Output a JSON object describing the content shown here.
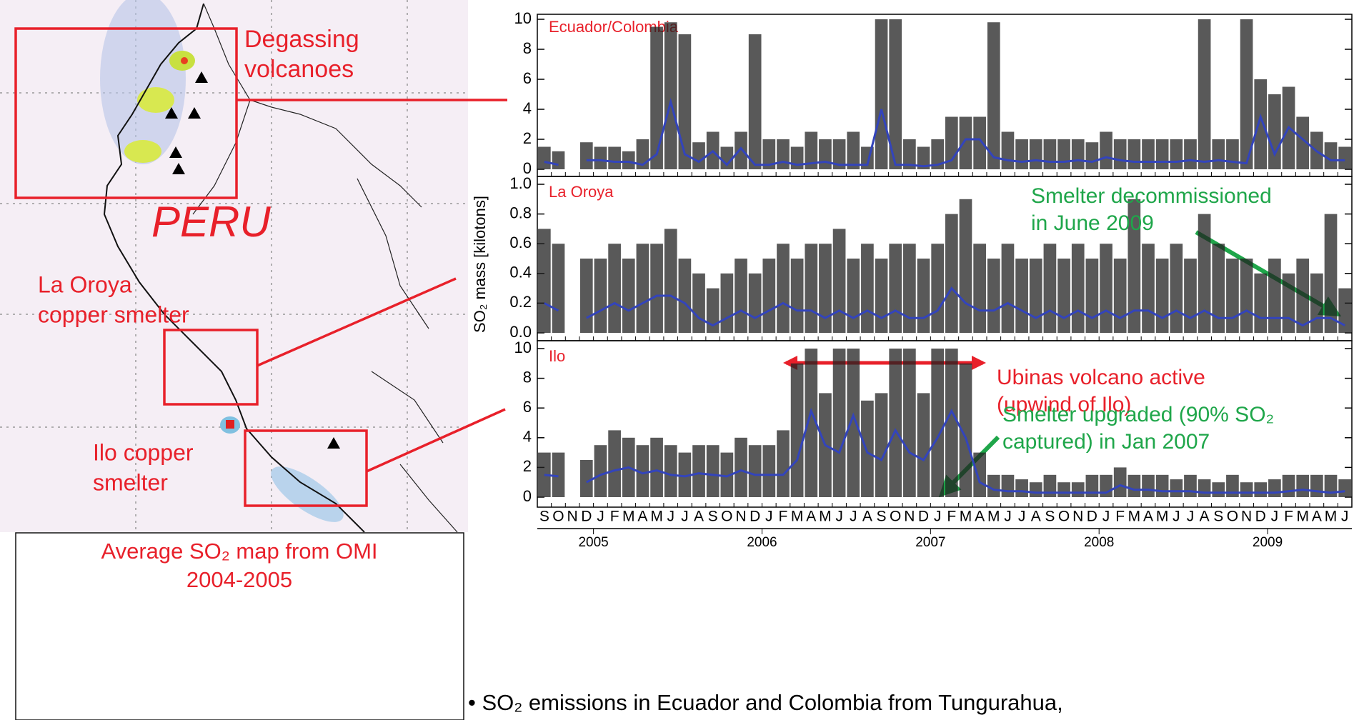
{
  "map": {
    "labels": {
      "degassing": [
        "Degassing",
        "volcanoes"
      ],
      "country": "PERU",
      "oroya": [
        "La Oroya",
        "copper smelter"
      ],
      "ilo": [
        "Ilo copper",
        "smelter"
      ]
    },
    "caption": [
      "Average SO₂ map from OMI",
      "2004-2005"
    ]
  },
  "ylabel": "SO₂ mass [kilotons]",
  "bullet": "• SO₂ emissions in Ecuador and Colombia from Tungurahua,",
  "chart_data": [
    {
      "type": "line",
      "title": "Ecuador/Colombia",
      "ylim": [
        0,
        10
      ],
      "yticks": [
        0,
        2,
        4,
        6,
        8,
        10
      ],
      "series": [
        {
          "style": "spikes",
          "color": "#222222",
          "values": [
            1.5,
            1.2,
            null,
            1.8,
            1.5,
            1.5,
            1.2,
            2.0,
            9.5,
            9.8,
            9.0,
            1.8,
            2.5,
            1.5,
            2.5,
            9.0,
            2.0,
            2.0,
            1.5,
            2.5,
            2.0,
            2.0,
            2.5,
            1.5,
            10,
            10,
            2.0,
            1.5,
            2.0,
            3.5,
            3.5,
            3.5,
            9.8,
            2.5,
            2.0,
            2.0,
            2.0,
            2.0,
            2.0,
            1.8,
            2.5,
            2.0,
            2.0,
            2.0,
            2.0,
            2.0,
            2.0,
            10,
            2.0,
            2.0,
            10,
            6.0,
            5.0,
            5.5,
            3.5,
            2.5,
            1.8,
            1.5
          ]
        },
        {
          "style": "line",
          "color": "#3344bb",
          "values": [
            0.5,
            0.3,
            null,
            0.6,
            0.6,
            0.5,
            0.5,
            0.3,
            1.0,
            4.5,
            1.0,
            0.5,
            1.2,
            0.3,
            1.4,
            0.3,
            0.3,
            0.5,
            0.3,
            0.4,
            0.5,
            0.3,
            0.3,
            0.3,
            4.0,
            0.3,
            0.3,
            0.2,
            0.3,
            0.6,
            2.0,
            2.0,
            0.8,
            0.6,
            0.5,
            0.6,
            0.5,
            0.5,
            0.6,
            0.5,
            0.8,
            0.6,
            0.5,
            0.5,
            0.5,
            0.5,
            0.6,
            0.5,
            0.6,
            0.5,
            0.4,
            3.5,
            1.0,
            2.8,
            2.0,
            1.2,
            0.6,
            0.6
          ]
        }
      ]
    },
    {
      "type": "line",
      "title": "La Oroya",
      "ylim": [
        0,
        1
      ],
      "yticks": [
        {
          "value": 0,
          "label": "0.0"
        },
        0.2,
        0.4,
        0.6,
        0.8,
        {
          "value": 1,
          "label": "1.0"
        }
      ],
      "annotations": {
        "decommissioned": [
          "Smelter decommissioned",
          "in June 2009"
        ]
      },
      "series": [
        {
          "style": "spikes",
          "color": "#222222",
          "values": [
            0.7,
            0.6,
            null,
            0.5,
            0.5,
            0.6,
            0.5,
            0.6,
            0.6,
            0.7,
            0.5,
            0.4,
            0.3,
            0.4,
            0.5,
            0.4,
            0.5,
            0.6,
            0.5,
            0.6,
            0.6,
            0.7,
            0.5,
            0.6,
            0.5,
            0.6,
            0.6,
            0.5,
            0.6,
            0.8,
            0.9,
            0.6,
            0.5,
            0.6,
            0.5,
            0.5,
            0.6,
            0.5,
            0.6,
            0.5,
            0.6,
            0.5,
            0.9,
            0.6,
            0.5,
            0.6,
            0.5,
            0.8,
            0.6,
            0.5,
            0.5,
            0.4,
            0.5,
            0.4,
            0.5,
            0.4,
            0.8,
            0.3
          ]
        },
        {
          "style": "line",
          "color": "#3344bb",
          "values": [
            0.2,
            0.15,
            null,
            0.1,
            0.15,
            0.2,
            0.15,
            0.2,
            0.25,
            0.25,
            0.2,
            0.1,
            0.05,
            0.1,
            0.15,
            0.1,
            0.15,
            0.2,
            0.15,
            0.15,
            0.1,
            0.15,
            0.1,
            0.15,
            0.1,
            0.15,
            0.1,
            0.1,
            0.15,
            0.3,
            0.2,
            0.15,
            0.15,
            0.2,
            0.15,
            0.1,
            0.15,
            0.1,
            0.15,
            0.1,
            0.15,
            0.1,
            0.15,
            0.15,
            0.1,
            0.15,
            0.1,
            0.15,
            0.1,
            0.1,
            0.15,
            0.1,
            0.1,
            0.1,
            0.05,
            0.1,
            0.1,
            0.05
          ]
        }
      ]
    },
    {
      "type": "line",
      "title": "Ilo",
      "ylim": [
        0,
        10
      ],
      "yticks": [
        0,
        2,
        4,
        6,
        8,
        10
      ],
      "annotations": {
        "ubinas": [
          "Ubinas volcano active",
          "(upwind of Ilo)"
        ],
        "upgraded": [
          "Smelter upgraded (90% SO₂",
          "captured) in Jan 2007"
        ]
      },
      "categories": [
        "S",
        "O",
        "N",
        "D",
        "J",
        "F",
        "M",
        "A",
        "M",
        "J",
        "J",
        "A",
        "S",
        "O",
        "N",
        "D",
        "J",
        "F",
        "M",
        "A",
        "M",
        "J",
        "J",
        "A",
        "S",
        "O",
        "N",
        "D",
        "J",
        "F",
        "M",
        "A",
        "M",
        "J",
        "J",
        "A",
        "S",
        "O",
        "N",
        "D",
        "J",
        "F",
        "M",
        "A",
        "M",
        "J",
        "J",
        "A",
        "S",
        "O",
        "N",
        "D",
        "J",
        "F",
        "M",
        "A",
        "M",
        "J"
      ],
      "years": [
        "2005",
        "2006",
        "2007",
        "2008",
        "2009"
      ],
      "series": [
        {
          "style": "spikes",
          "color": "#222222",
          "values": [
            3.0,
            3.0,
            null,
            2.5,
            3.5,
            4.5,
            4.0,
            3.5,
            4.0,
            3.5,
            3.0,
            3.5,
            3.5,
            3.0,
            4.0,
            3.5,
            3.5,
            4.5,
            9.0,
            10,
            7.0,
            10,
            10,
            6.5,
            7.0,
            10,
            10,
            7.0,
            10,
            10,
            9.0,
            3.0,
            1.5,
            1.5,
            1.2,
            1.0,
            1.5,
            1.0,
            1.0,
            1.5,
            1.5,
            2.0,
            1.5,
            1.5,
            1.5,
            1.2,
            1.5,
            1.2,
            1.0,
            1.5,
            1.0,
            1.0,
            1.2,
            1.5,
            1.5,
            1.5,
            1.5,
            1.2
          ]
        },
        {
          "style": "line",
          "color": "#3344bb",
          "values": [
            1.5,
            1.4,
            null,
            1.0,
            1.5,
            1.8,
            2.0,
            1.6,
            1.8,
            1.5,
            1.4,
            1.6,
            1.5,
            1.4,
            1.8,
            1.5,
            1.5,
            1.5,
            2.5,
            5.8,
            3.5,
            3.0,
            5.5,
            3.0,
            2.5,
            4.5,
            3.0,
            2.5,
            4.0,
            5.8,
            4.0,
            1.0,
            0.5,
            0.4,
            0.4,
            0.3,
            0.3,
            0.3,
            0.3,
            0.3,
            0.3,
            0.8,
            0.5,
            0.5,
            0.4,
            0.4,
            0.4,
            0.3,
            0.3,
            0.3,
            0.3,
            0.3,
            0.3,
            0.4,
            0.5,
            0.4,
            0.3,
            0.4
          ]
        }
      ]
    }
  ]
}
